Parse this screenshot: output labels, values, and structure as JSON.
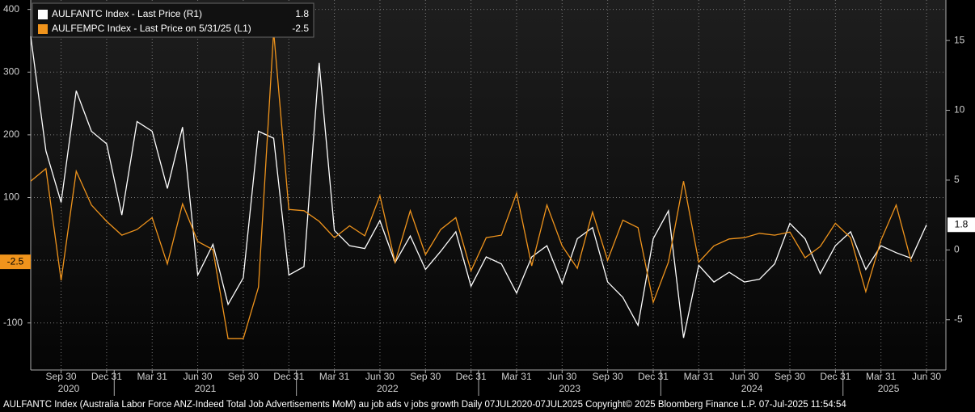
{
  "chart_data": {
    "type": "line",
    "series": [
      {
        "name": "AULFANTC Index - Last Price (R1)",
        "color": "#ffffff",
        "axis": "y2",
        "values": [
          15.3,
          7.1,
          3.4,
          11.4,
          8.5,
          7.6,
          2.5,
          9.2,
          8.5,
          4.4,
          8.8,
          -1.8,
          0.4,
          -3.9,
          -2.0,
          8.5,
          8.0,
          -1.8,
          -1.2,
          13.4,
          1.4,
          0.3,
          0.1,
          2.1,
          -0.9,
          1.0,
          -1.4,
          -0.1,
          1.3,
          -2.6,
          -0.5,
          -1.0,
          -3.1,
          -0.5,
          0.3,
          -2.4,
          0.8,
          1.6,
          -2.3,
          -3.4,
          -5.4,
          0.8,
          2.8,
          -6.3,
          -1.1,
          -2.3,
          -1.6,
          -2.3,
          -2.1,
          -1.0,
          1.9,
          0.8,
          -1.7,
          0.3,
          1.3,
          -1.4,
          0.3,
          -0.2,
          -0.6,
          1.8
        ]
      },
      {
        "name": "AULFEMPC Index - Last Price on 5/31/25 (L1)",
        "color": "#f0941c",
        "axis": "y",
        "values": [
          126,
          146,
          -32,
          142,
          88,
          62,
          40,
          49,
          68,
          -6,
          90,
          30,
          17,
          -125,
          -125,
          -43,
          365,
          81,
          79,
          62,
          36,
          55,
          39,
          103,
          -3,
          79,
          9,
          49,
          68,
          -17,
          36,
          40,
          107,
          -9,
          88,
          23,
          -13,
          77,
          0,
          64,
          52,
          -67,
          -3,
          126,
          -3,
          23,
          34,
          36,
          43,
          40,
          45,
          4,
          22,
          59,
          36,
          -50,
          32,
          88,
          -2.5,
          null
        ]
      }
    ],
    "categories": [
      null,
      null,
      "Sep 30",
      null,
      null,
      "Dec 31",
      null,
      null,
      "Mar 31",
      null,
      null,
      "Jun 30",
      null,
      null,
      "Sep 30",
      null,
      null,
      "Dec 31",
      null,
      null,
      "Mar 31",
      null,
      null,
      "Jun 30",
      null,
      null,
      "Sep 30",
      null,
      null,
      "Dec 31",
      null,
      null,
      "Mar 31",
      null,
      null,
      "Jun 30",
      null,
      null,
      "Sep 30",
      null,
      null,
      "Dec 31",
      null,
      null,
      "Mar 31",
      null,
      null,
      "Jun 30",
      null,
      null,
      "Sep 30",
      null,
      null,
      "Dec 31",
      null,
      null,
      "Mar 31",
      null,
      null,
      "Jun 30"
    ],
    "x_groups": [
      {
        "label": "2020",
        "span": 6
      },
      {
        "label": "2021",
        "span": 12
      },
      {
        "label": "2022",
        "span": 12
      },
      {
        "label": "2023",
        "span": 12
      },
      {
        "label": "2024",
        "span": 12
      },
      {
        "label": "2025",
        "span": 6
      }
    ],
    "ylim": [
      -175,
      415
    ],
    "yticks": [
      -100,
      0,
      100,
      200,
      300,
      400
    ],
    "y2lim": [
      -8.6,
      17.9
    ],
    "y2ticks": [
      -5,
      0,
      5,
      10,
      15
    ],
    "grid": true,
    "legend": "upper left",
    "footer": "AULFANTC Index (Australia Labor Force ANZ-Indeed Total Job Advertisements MoM) au job ads v jobs growth  Daily 07JUL2020-07JUL2025 Copyright© 2025 Bloomberg Finance L.P. 07-Jul-2025 11:54:54"
  }
}
